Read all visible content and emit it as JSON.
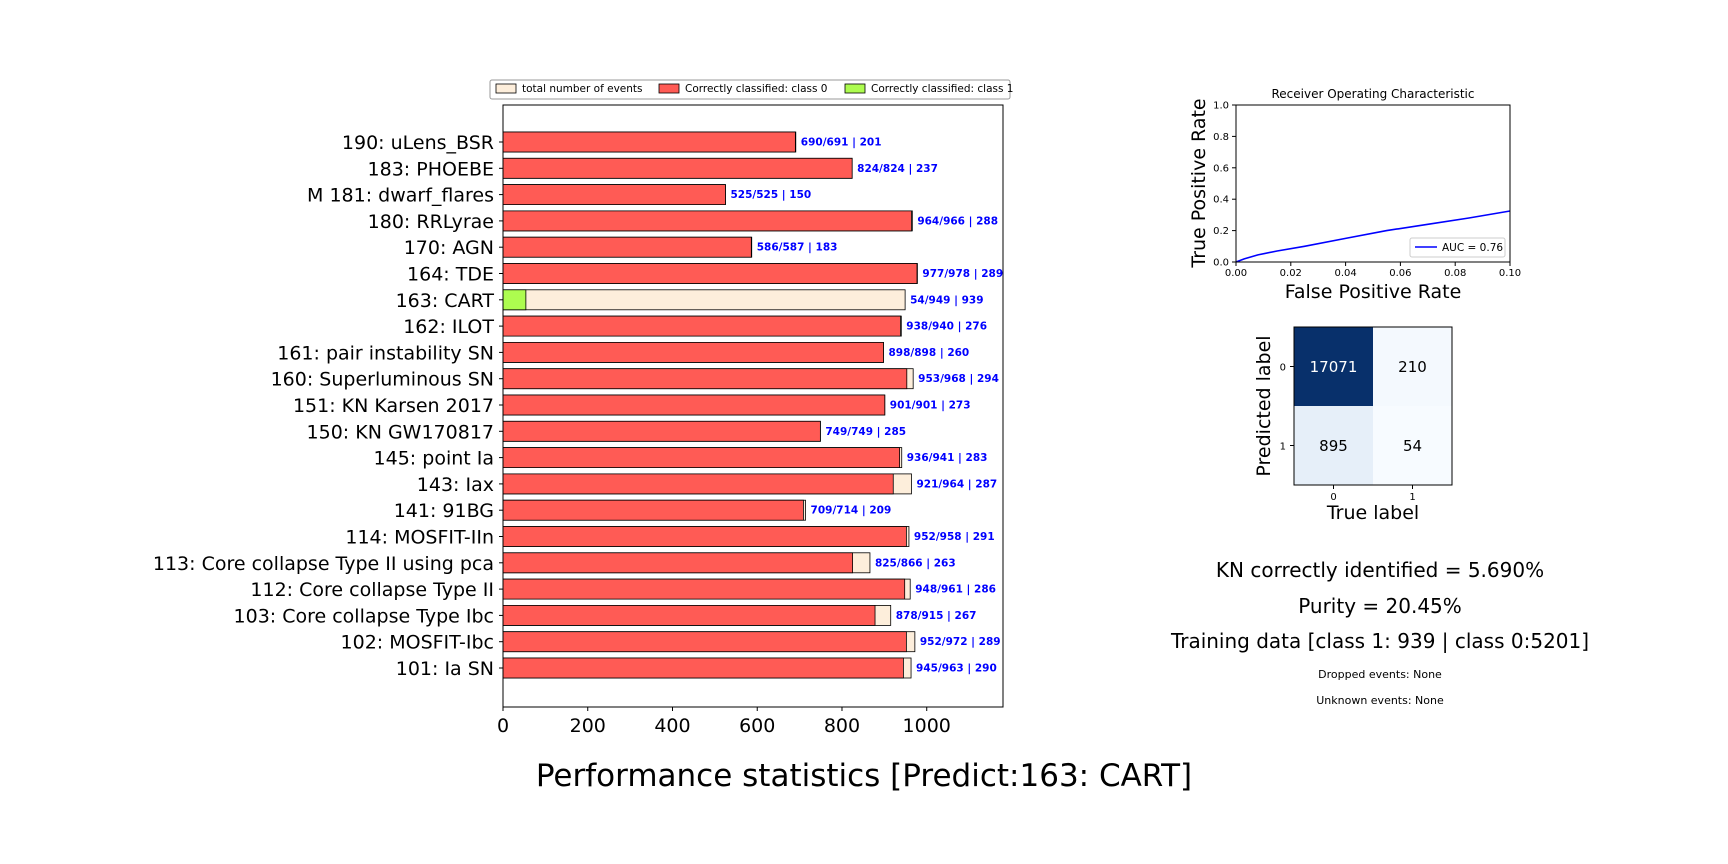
{
  "suptitle": "Performance statistics [Predict:163: CART]",
  "bar_chart": {
    "legend": {
      "total": "total number of events",
      "class0": "Correctly classified: class 0",
      "class1": "Correctly classified: class 1"
    },
    "colors": {
      "total": "#fdeedb",
      "class0": "#ff5b55",
      "class1": "#adfc4f",
      "label": "#0000ff"
    }
  },
  "chart_data": [
    {
      "type": "bar",
      "orientation": "horizontal",
      "xlim": [
        0,
        1180
      ],
      "xticks": [
        0,
        200,
        400,
        600,
        800,
        1000
      ],
      "categories": [
        "190: uLens_BSR",
        "183: PHOEBE",
        "M 181: dwarf_flares",
        "180: RRLyrae",
        "170: AGN",
        "164: TDE",
        "163: CART",
        "162: ILOT",
        "161: pair instability SN",
        "160: Superluminous SN",
        "151: KN Karsen 2017",
        "150: KN GW170817",
        "145: point Ia",
        "143: Iax",
        "141: 91BG",
        "114: MOSFIT-IIn",
        "113: Core collapse Type II using pca ",
        "112: Core collapse Type II",
        "103: Core collapse Type Ibc",
        "102: MOSFIT-Ibc",
        "101: Ia SN"
      ],
      "series": [
        {
          "name": "total number of events",
          "values": [
            691,
            824,
            525,
            966,
            587,
            978,
            949,
            940,
            898,
            968,
            901,
            749,
            941,
            964,
            714,
            958,
            866,
            961,
            915,
            972,
            963
          ]
        },
        {
          "name": "Correctly classified: class 0",
          "values": [
            690,
            824,
            525,
            964,
            586,
            977,
            0,
            938,
            898,
            953,
            901,
            749,
            936,
            921,
            709,
            952,
            825,
            948,
            878,
            952,
            945
          ]
        },
        {
          "name": "Correctly classified: class 1",
          "values": [
            0,
            0,
            0,
            0,
            0,
            0,
            54,
            0,
            0,
            0,
            0,
            0,
            0,
            0,
            0,
            0,
            0,
            0,
            0,
            0,
            0
          ]
        }
      ],
      "bar_labels": [
        "690/691 | 201",
        "824/824 | 237",
        "525/525 | 150",
        "964/966 | 288",
        "586/587 | 183",
        "977/978 | 289",
        "54/949 | 939",
        "938/940 | 276",
        "898/898 | 260",
        "953/968 | 294",
        "901/901 | 273",
        "749/749 | 285",
        "936/941 | 283",
        "921/964 | 287",
        "709/714 | 209",
        "952/958 | 291",
        "825/866 | 263",
        "948/961 | 286",
        "878/915 | 267",
        "952/972 | 289",
        "945/963 | 290"
      ]
    },
    {
      "type": "line",
      "title": "Receiver Operating Characteristic",
      "xlabel": "False Positive Rate",
      "ylabel": "True Positive Rate",
      "xlim": [
        0,
        0.1
      ],
      "ylim": [
        0,
        1.0
      ],
      "xticks": [
        "0.00",
        "0.02",
        "0.04",
        "0.06",
        "0.08",
        "0.10"
      ],
      "yticks": [
        "0.0",
        "0.2",
        "0.4",
        "0.6",
        "0.8",
        "1.0"
      ],
      "color": "#0000ff",
      "series": [
        {
          "name": "AUC = 0.76",
          "x": [
            0,
            0.003,
            0.008,
            0.015,
            0.025,
            0.04,
            0.055,
            0.07,
            0.085,
            0.1
          ],
          "y": [
            0,
            0.02,
            0.045,
            0.07,
            0.1,
            0.15,
            0.2,
            0.24,
            0.28,
            0.325
          ]
        }
      ]
    },
    {
      "type": "heatmap",
      "xlabel": "True label",
      "ylabel": "Predicted label",
      "xticks": [
        "0",
        "1"
      ],
      "yticks": [
        "0",
        "1"
      ],
      "values": [
        [
          17071,
          210
        ],
        [
          895,
          54
        ]
      ],
      "colors": [
        [
          "#08306b",
          "#f4f9fe"
        ],
        [
          "#e6eff9",
          "#f7fbff"
        ]
      ],
      "text_colors": [
        [
          "#ffffff",
          "#000000"
        ],
        [
          "#000000",
          "#000000"
        ]
      ]
    }
  ],
  "stats": {
    "kn": "KN correctly identified = 5.690%",
    "purity": "Purity = 20.45%",
    "training": "Training data [class 1: 939 | class 0:5201]",
    "dropped": "Dropped events: None",
    "unknown": "Unknown events: None"
  }
}
